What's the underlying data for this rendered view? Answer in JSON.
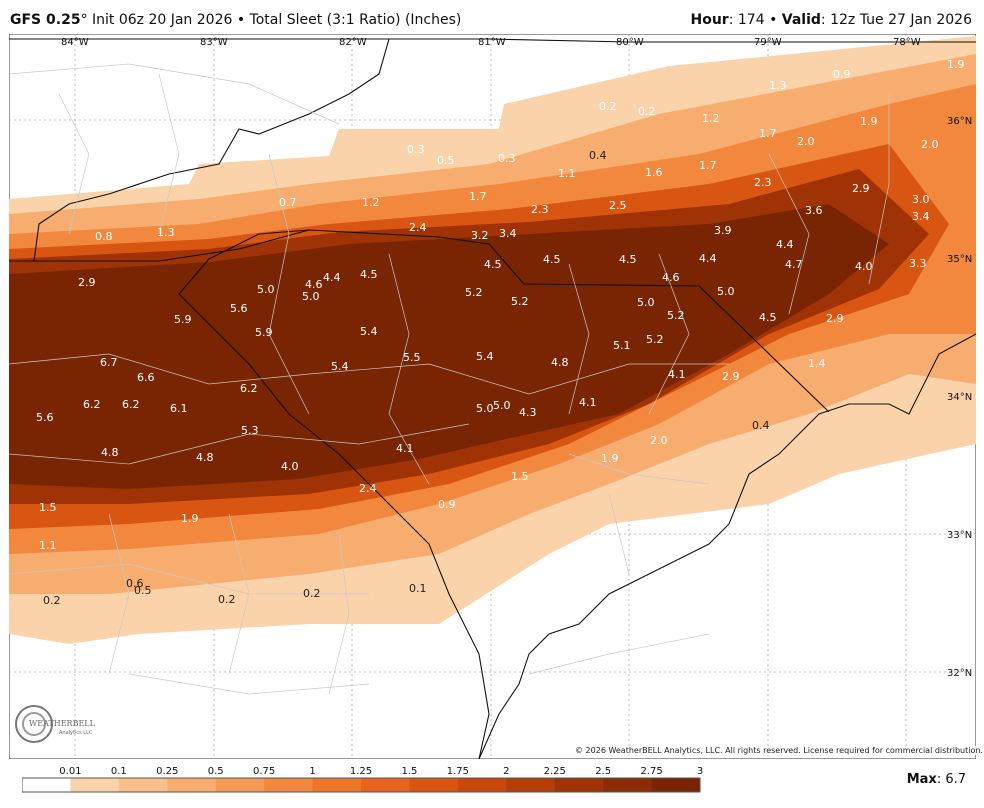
{
  "header": {
    "model": "GFS 0.25",
    "degree": "°",
    "init": "Init 06z 20 Jan 2026",
    "sep": "•",
    "product": "Total Sleet (3:1 Ratio) (Inches)",
    "hour_label": "Hour",
    "hour_value": ": 174",
    "valid_label": "Valid",
    "valid_value": ": 12z Tue 27 Jan 2026"
  },
  "map": {
    "lon_labels": [
      "84°W",
      "83°W",
      "82°W",
      "81°W",
      "80°W",
      "79°W",
      "78°W"
    ],
    "lat_labels": [
      "36°N",
      "35°N",
      "34°N",
      "33°N",
      "32°N"
    ],
    "values": [
      "1.9",
      "0.9",
      "1.3",
      "0.2",
      "0.2",
      "1.2",
      "1.9",
      "1.7",
      "2.0",
      "2.0",
      "0.3",
      "0.5",
      "0.3",
      "0.4",
      "1.1",
      "1.6",
      "1.7",
      "2.3",
      "2.9",
      "3.0",
      "3.4",
      "0.7",
      "1.2",
      "1.7",
      "2.3",
      "2.5",
      "3.6",
      "0.8",
      "1.3",
      "2.4",
      "3.2",
      "3.4",
      "3.9",
      "4.4",
      "2.9",
      "4.5",
      "4.5",
      "4.5",
      "4.6",
      "4.4",
      "4.7",
      "4.0",
      "3.3",
      "5.0",
      "4.6",
      "4.4",
      "4.5",
      "5.0",
      "5.0",
      "5.2",
      "5.2",
      "5.0",
      "5.6",
      "5.9",
      "5.9",
      "5.2",
      "4.5",
      "2.9",
      "5.4",
      "5.2",
      "6.7",
      "5.4",
      "5.5",
      "5.4",
      "4.8",
      "5.1",
      "1.4",
      "6.6",
      "6.2",
      "4.1",
      "2.9",
      "6.2",
      "6.2",
      "6.1",
      "5.0",
      "5.0",
      "4.3",
      "4.1",
      "5.6",
      "5.3",
      "0.4",
      "4.8",
      "4.8",
      "4.0",
      "4.1",
      "2.0",
      "1.9",
      "1.5",
      "2.4",
      "1.5",
      "0.9",
      "1.9",
      "1.1",
      "0.6",
      "0.5",
      "0.2",
      "0.2",
      "0.2",
      "0.1"
    ],
    "copyright": "© 2026 WeatherBELL Analytics, LLC. All rights reserved. License required for commercial distribution.",
    "logo_text": "WEATHERBELL",
    "logo_sub": "Analytics LLC"
  },
  "legend": {
    "ticks": [
      "0.01",
      "0.1",
      "0.25",
      "0.5",
      "0.75",
      "1",
      "1.25",
      "1.5",
      "1.75",
      "2",
      "2.25",
      "2.5",
      "2.75",
      "3"
    ],
    "colors": [
      "#ffffff",
      "#fbd3aa",
      "#f9c08c",
      "#f7ad70",
      "#f59a56",
      "#f2873e",
      "#ee762b",
      "#e6641d",
      "#d85512",
      "#c9490c",
      "#b53d08",
      "#a03306",
      "#8b2c05",
      "#792504"
    ]
  },
  "max": {
    "label": "Max",
    "value": ": 6.7"
  }
}
